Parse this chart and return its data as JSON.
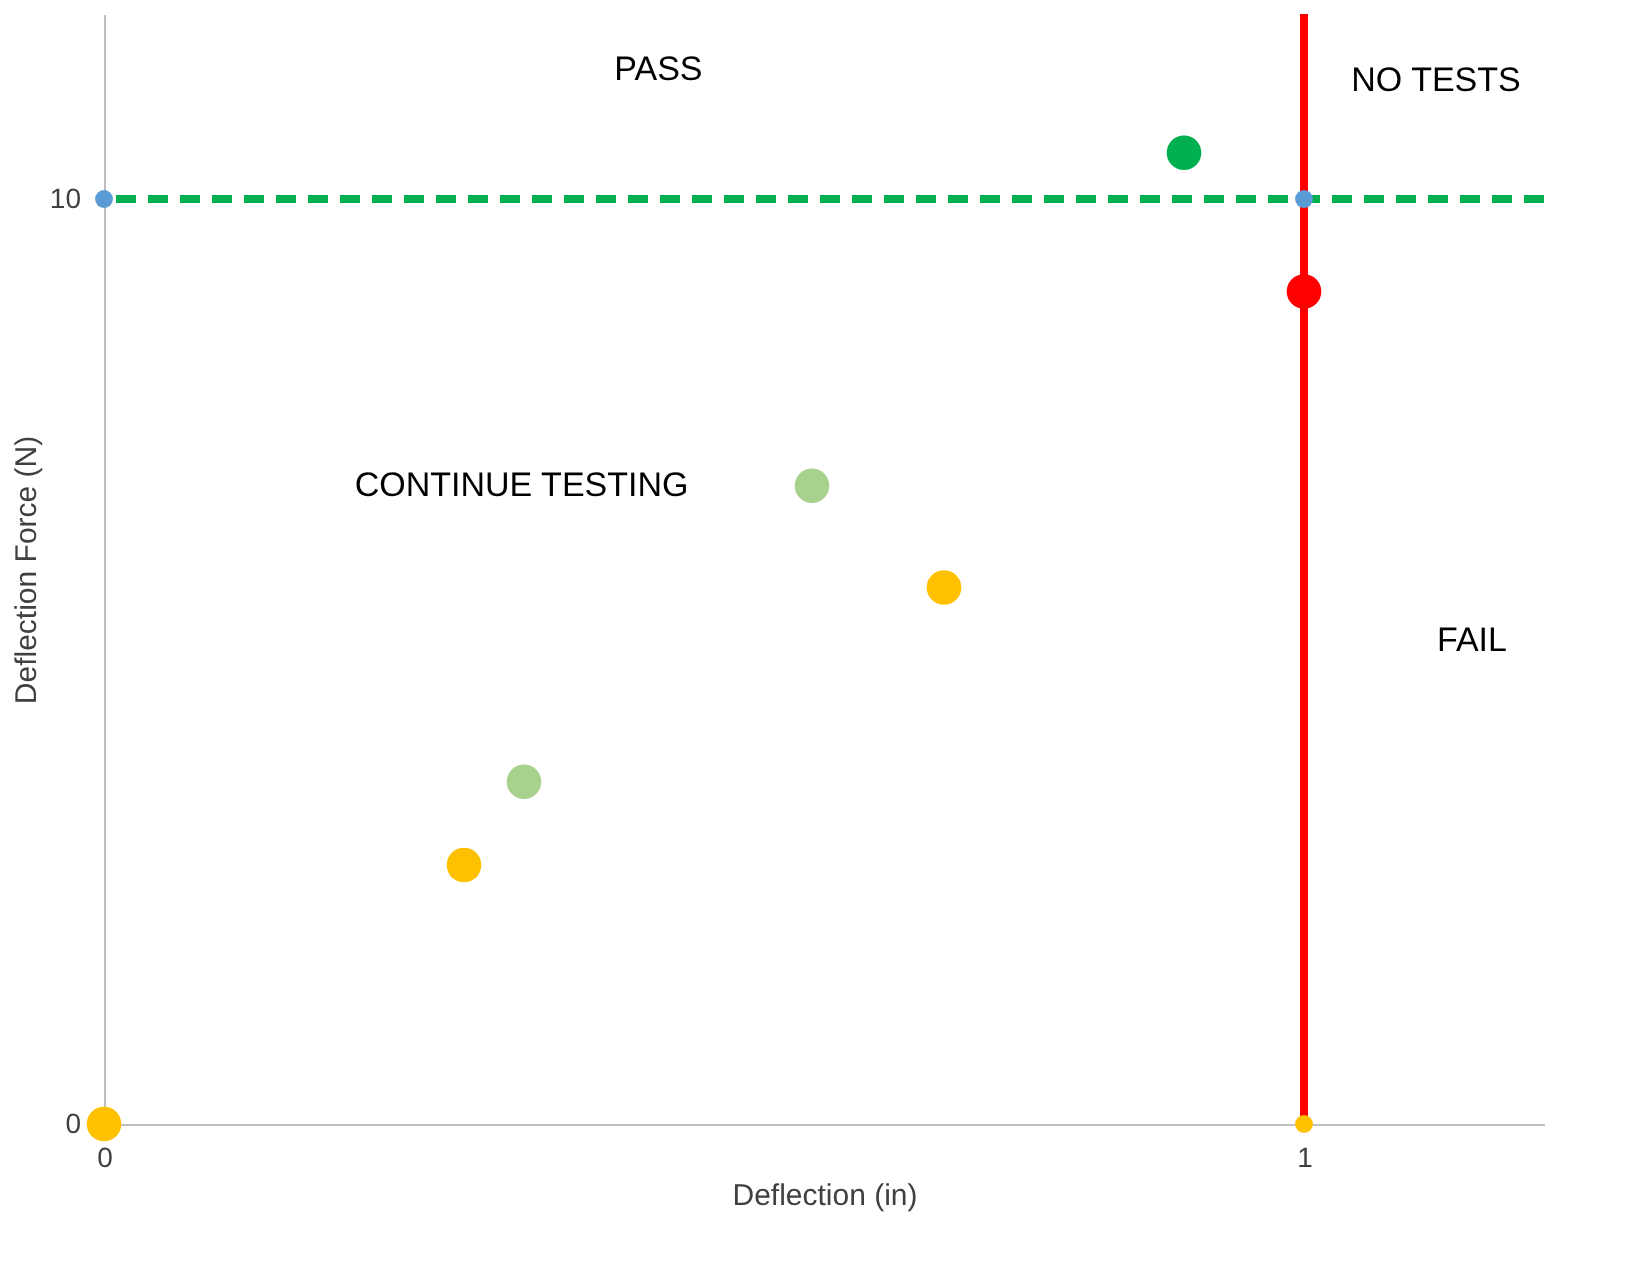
{
  "chart_data": {
    "type": "scatter",
    "xlabel": "Deflection (in)",
    "ylabel": "Deflection Force (N)",
    "xlim": [
      0,
      1.2
    ],
    "ylim": [
      0,
      12
    ],
    "xticks": [
      0,
      1
    ],
    "yticks": [
      0,
      10
    ],
    "grid": false,
    "marker": "circle",
    "series": [
      {
        "x": [
          0,
          0.3,
          0.35,
          0.59,
          0.7,
          0.9,
          1.0
        ],
        "values": [
          0,
          2.8,
          3.7,
          6.9,
          5.8,
          10.5,
          9.0
        ],
        "colors": [
          "#ffc000",
          "#ffc000",
          "#a9d18e",
          "#a9d18e",
          "#ffc000",
          "#00b050",
          "#ff0000"
        ]
      },
      {
        "x": [
          0,
          1,
          1
        ],
        "values": [
          10,
          10,
          0
        ],
        "colors": [
          "#5b9bd5",
          "#5b9bd5",
          "#ffc000"
        ]
      }
    ],
    "ref_lines": [
      {
        "axis": "y",
        "value": 10,
        "color": "#00b050",
        "line_style": "dashed"
      },
      {
        "axis": "x",
        "value": 1,
        "color": "#ff0000",
        "line_style": "solid"
      }
    ],
    "annotations": [
      "PASS",
      "NO TESTS",
      "CONTINUE TESTING",
      "FAIL"
    ]
  }
}
